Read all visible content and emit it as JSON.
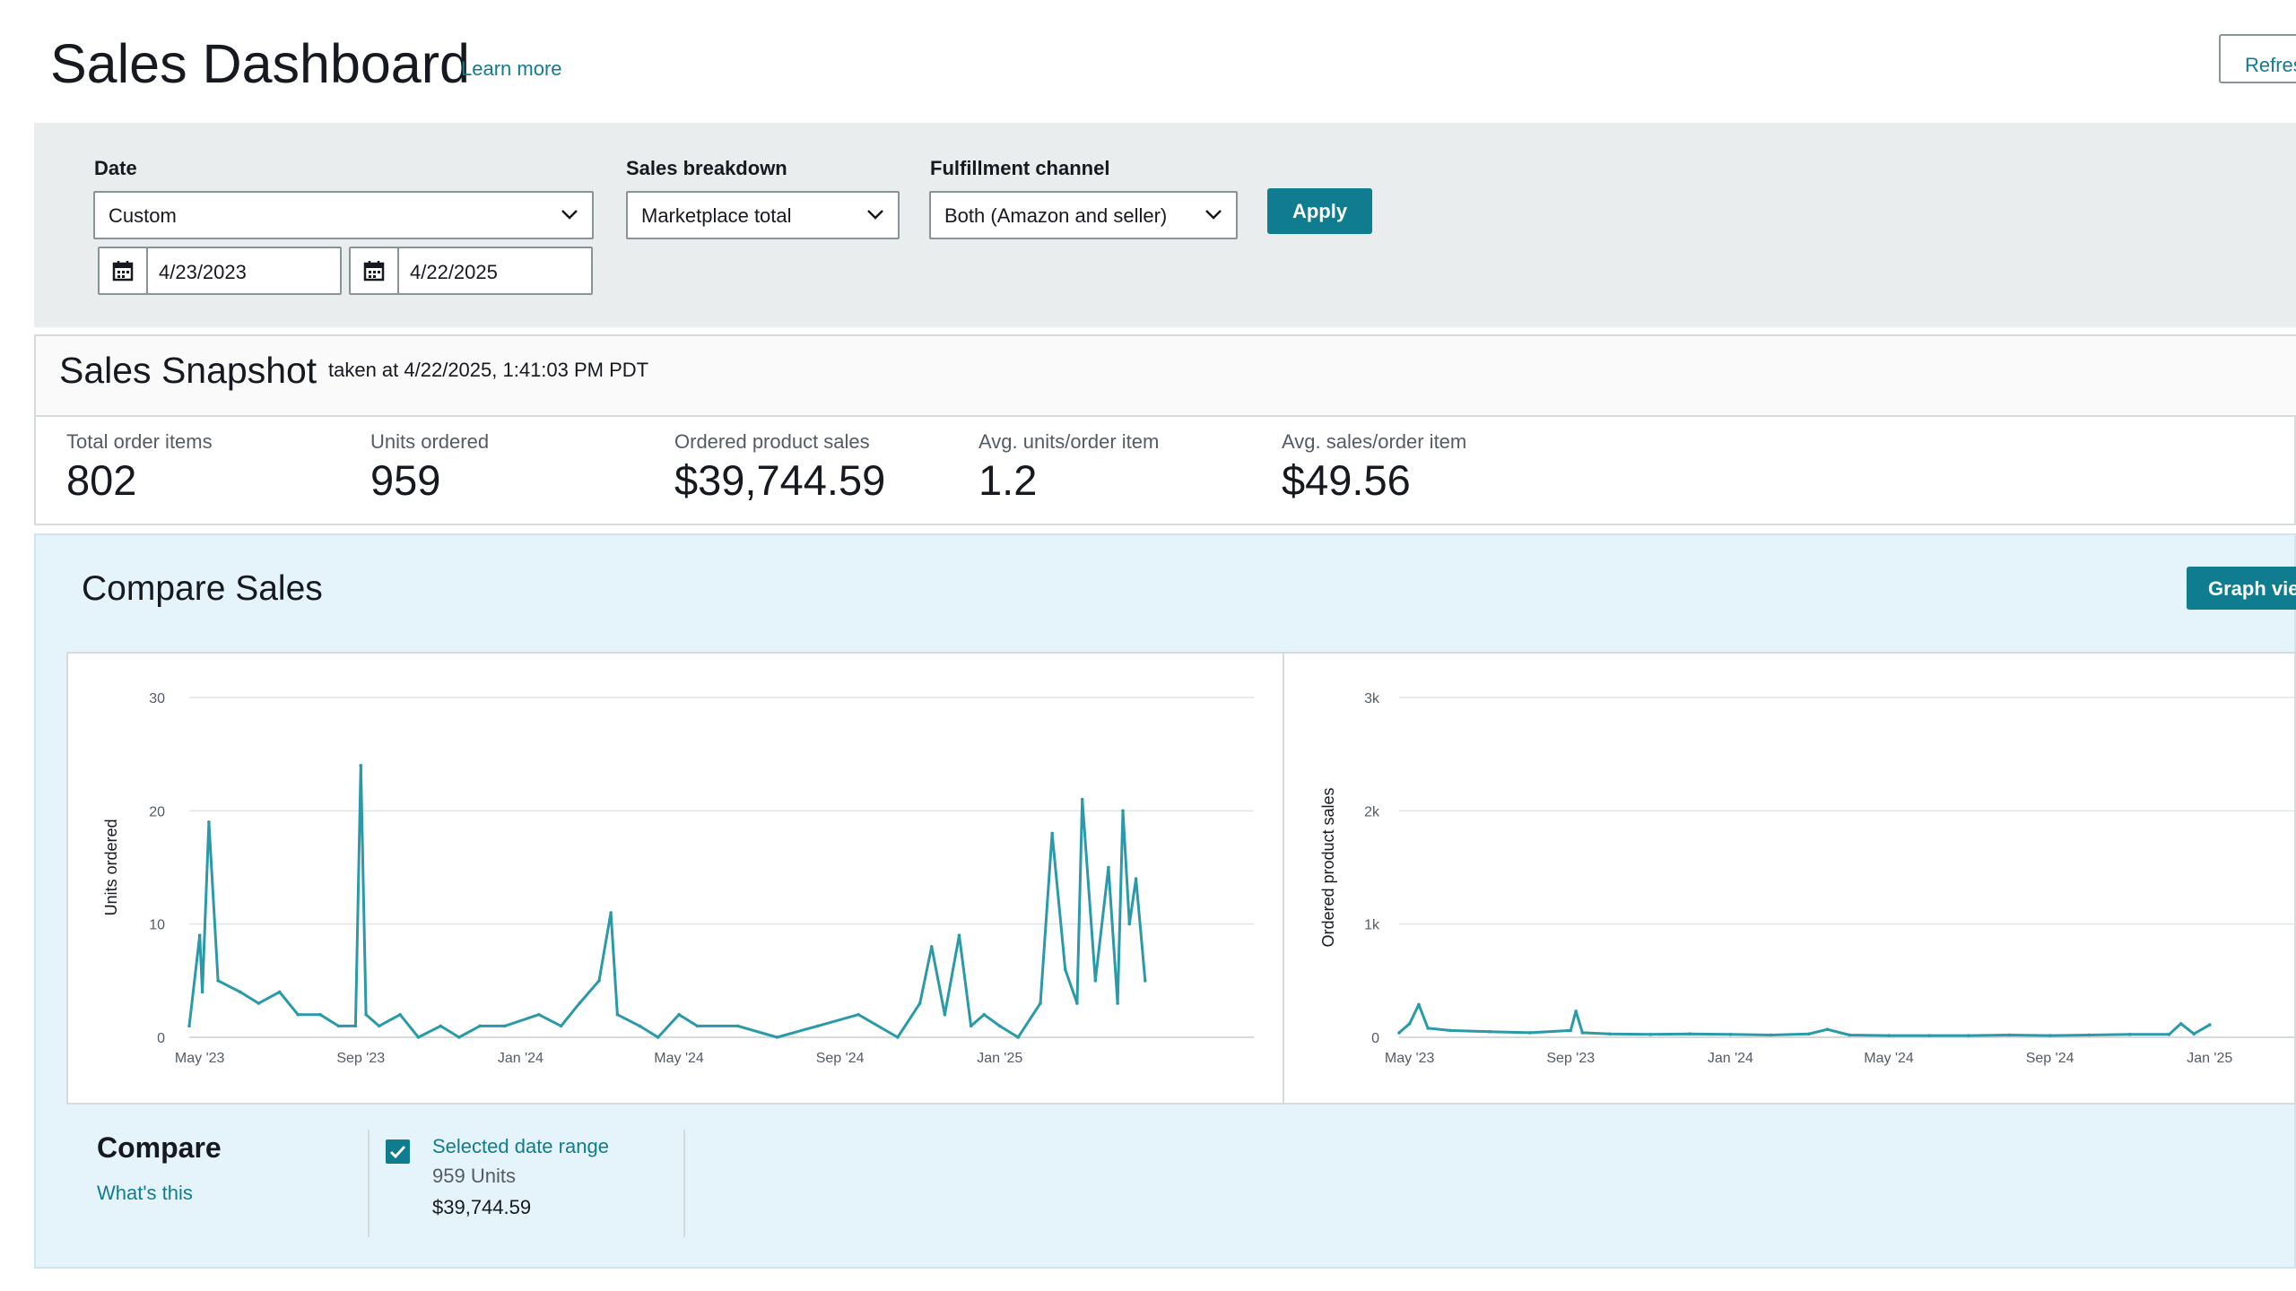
{
  "header": {
    "title": "Sales Dashboard",
    "learn_more": "Learn more",
    "refresh_label": "Refresh"
  },
  "filters": {
    "date": {
      "label": "Date",
      "value": "Custom",
      "start": "4/23/2023",
      "end": "4/22/2025"
    },
    "breakdown": {
      "label": "Sales breakdown",
      "value": "Marketplace total"
    },
    "fulfillment": {
      "label": "Fulfillment channel",
      "value": "Both (Amazon and seller)"
    },
    "apply_label": "Apply"
  },
  "snapshot": {
    "title": "Sales Snapshot",
    "taken_at": "taken at 4/22/2025, 1:41:03 PM PDT",
    "metrics": [
      {
        "label": "Total order items",
        "value": "802"
      },
      {
        "label": "Units ordered",
        "value": "959"
      },
      {
        "label": "Ordered product sales",
        "value": "$39,744.59"
      },
      {
        "label": "Avg. units/order item",
        "value": "1.2"
      },
      {
        "label": "Avg. sales/order item",
        "value": "$49.56"
      }
    ]
  },
  "compare_sales": {
    "title": "Compare Sales",
    "graph_view_label": "Graph view",
    "compare_label": "Compare",
    "whats_this": "What's this",
    "legend": {
      "name": "Selected date range",
      "units": "959 Units",
      "sales": "$39,744.59"
    }
  },
  "colors": {
    "accent": "#0f7c90",
    "line": "#2a9aa8",
    "panel_bg": "#e5f3fa",
    "filter_bg": "#eaeded"
  },
  "chart_data": [
    {
      "type": "line",
      "ylabel": "Units ordered",
      "yticks": [
        "0",
        "10",
        "20",
        "30"
      ],
      "ylim": [
        0,
        30
      ],
      "xticks": [
        "May '23",
        "Sep '23",
        "Jan '24",
        "May '24",
        "Sep '24",
        "Jan '25"
      ],
      "x": [
        "2023-04-23",
        "2023-05-01",
        "2023-05-03",
        "2023-05-08",
        "2023-05-15",
        "2023-06-01",
        "2023-06-15",
        "2023-07-01",
        "2023-07-15",
        "2023-08-01",
        "2023-08-15",
        "2023-08-28",
        "2023-09-01",
        "2023-09-05",
        "2023-09-15",
        "2023-10-01",
        "2023-10-15",
        "2023-11-01",
        "2023-11-15",
        "2023-12-01",
        "2023-12-20",
        "2024-01-15",
        "2024-02-01",
        "2024-02-15",
        "2024-03-01",
        "2024-03-10",
        "2024-03-15",
        "2024-04-01",
        "2024-04-15",
        "2024-05-01",
        "2024-05-15",
        "2024-06-15",
        "2024-07-15",
        "2024-08-15",
        "2024-09-15",
        "2024-10-15",
        "2024-11-01",
        "2024-11-10",
        "2024-11-20",
        "2024-12-01",
        "2024-12-10",
        "2024-12-20",
        "2025-01-01",
        "2025-01-15",
        "2025-02-01",
        "2025-02-10",
        "2025-02-20",
        "2025-03-01",
        "2025-03-05",
        "2025-03-15",
        "2025-03-25",
        "2025-04-01",
        "2025-04-05",
        "2025-04-10",
        "2025-04-15",
        "2025-04-22"
      ],
      "values": [
        1,
        9,
        4,
        19,
        5,
        4,
        3,
        4,
        2,
        2,
        1,
        1,
        24,
        2,
        1,
        2,
        0,
        1,
        0,
        1,
        1,
        2,
        1,
        3,
        5,
        11,
        2,
        1,
        0,
        2,
        1,
        1,
        0,
        1,
        2,
        0,
        3,
        8,
        2,
        9,
        1,
        2,
        1,
        0,
        3,
        18,
        6,
        3,
        21,
        5,
        15,
        3,
        20,
        10,
        14,
        5
      ]
    },
    {
      "type": "line",
      "ylabel": "Ordered product sales",
      "yticks": [
        "0",
        "1k",
        "2k",
        "3k"
      ],
      "ylim": [
        0,
        3000
      ],
      "xticks": [
        "May '23",
        "Sep '23",
        "Jan '24",
        "May '24",
        "Sep '24",
        "Jan '25"
      ],
      "x": [
        "2023-04-23",
        "2023-05-01",
        "2023-05-08",
        "2023-05-15",
        "2023-06-01",
        "2023-07-01",
        "2023-08-01",
        "2023-09-01",
        "2023-09-05",
        "2023-09-10",
        "2023-10-01",
        "2023-11-01",
        "2023-12-01",
        "2024-01-01",
        "2024-02-01",
        "2024-03-01",
        "2024-03-15",
        "2024-04-01",
        "2024-05-01",
        "2024-06-01",
        "2024-07-01",
        "2024-08-01",
        "2024-09-01",
        "2024-10-01",
        "2024-11-01",
        "2024-12-01",
        "2024-12-10",
        "2024-12-20",
        "2025-01-01"
      ],
      "values": [
        40,
        120,
        290,
        80,
        60,
        50,
        40,
        60,
        230,
        40,
        30,
        25,
        30,
        25,
        20,
        30,
        70,
        20,
        15,
        15,
        15,
        20,
        15,
        20,
        25,
        25,
        120,
        30,
        110
      ]
    }
  ]
}
